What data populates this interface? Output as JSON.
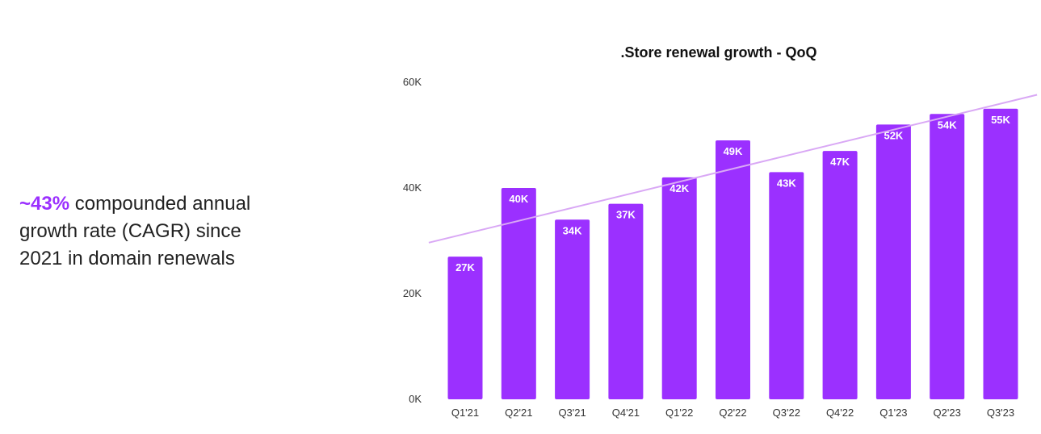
{
  "stat": {
    "highlight": "~43%",
    "text": " compounded annual growth rate (CAGR) since 2021 in domain renewals"
  },
  "colors": {
    "bar": "#9b30ff",
    "trend": "#d9a8f5",
    "highlight": "#9b30ff"
  },
  "chart_data": {
    "type": "bar",
    "title": ".Store renewal growth - QoQ",
    "xlabel": "",
    "ylabel": "",
    "ylim": [
      0,
      60000
    ],
    "y_ticks": [
      0,
      20000,
      40000,
      60000
    ],
    "y_tick_labels": [
      "0K",
      "20K",
      "40K",
      "60K"
    ],
    "grid": false,
    "legend": "none",
    "categories": [
      "Q1'21",
      "Q2'21",
      "Q3'21",
      "Q4'21",
      "Q1'22",
      "Q2'22",
      "Q3'22",
      "Q4'22",
      "Q1'23",
      "Q2'23",
      "Q3'23"
    ],
    "values": [
      27000,
      40000,
      34000,
      37000,
      42000,
      49000,
      43000,
      47000,
      52000,
      54000,
      55000
    ],
    "data_labels": [
      "27K",
      "40K",
      "34K",
      "37K",
      "42K",
      "49K",
      "43K",
      "47K",
      "52K",
      "54K",
      "55K"
    ],
    "trendline": true
  }
}
